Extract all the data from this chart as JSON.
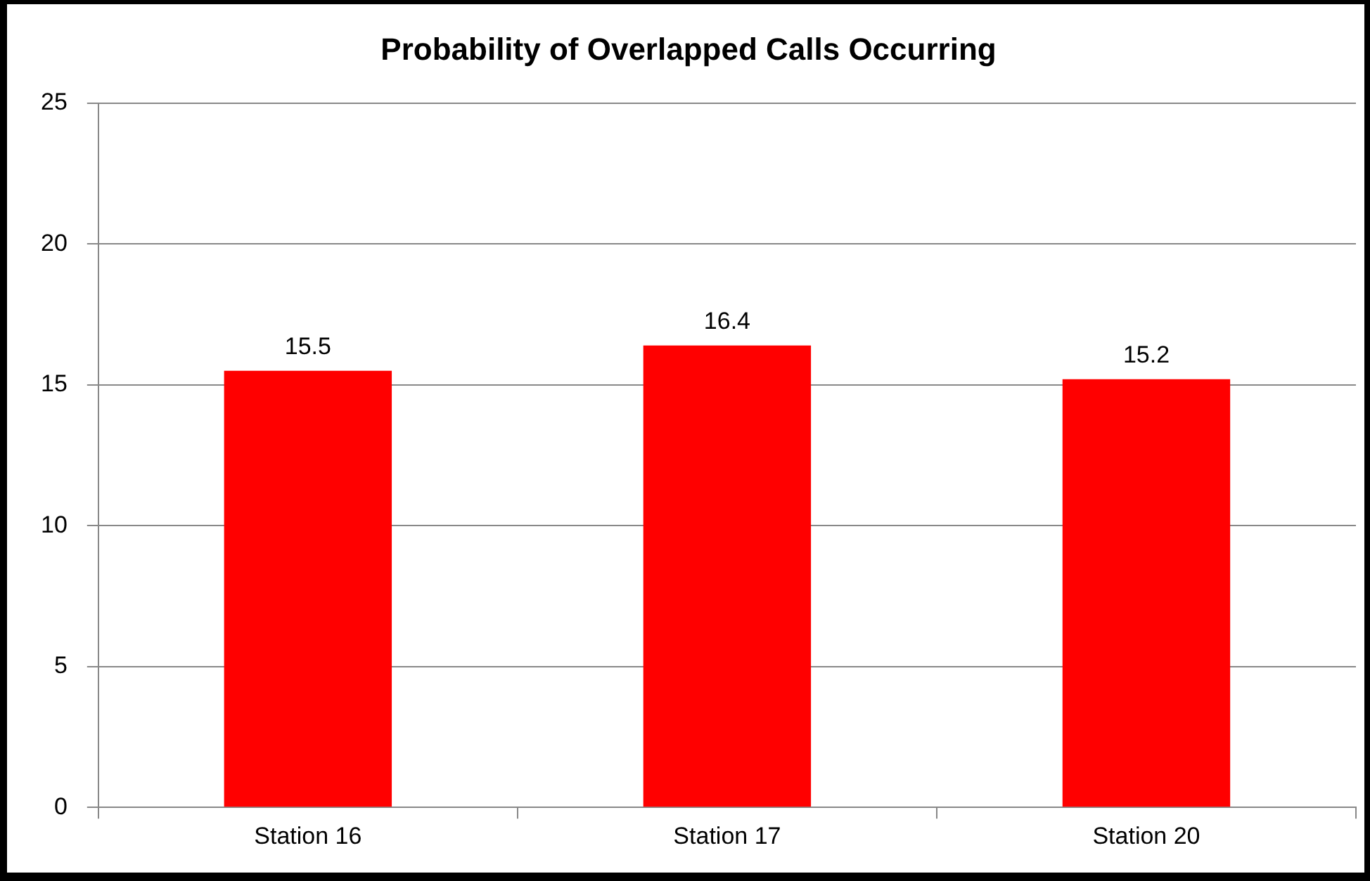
{
  "chart_data": {
    "type": "bar",
    "title": "Probability of Overlapped Calls Occurring",
    "categories": [
      "Station 16",
      "Station 17",
      "Station 20"
    ],
    "values": [
      15.5,
      16.4,
      15.2
    ],
    "color": "#ff0000",
    "ylim": [
      0,
      25
    ],
    "yticks": [
      0,
      5,
      10,
      15,
      20,
      25
    ],
    "grid": "y",
    "legend": false,
    "data_labels": true
  }
}
